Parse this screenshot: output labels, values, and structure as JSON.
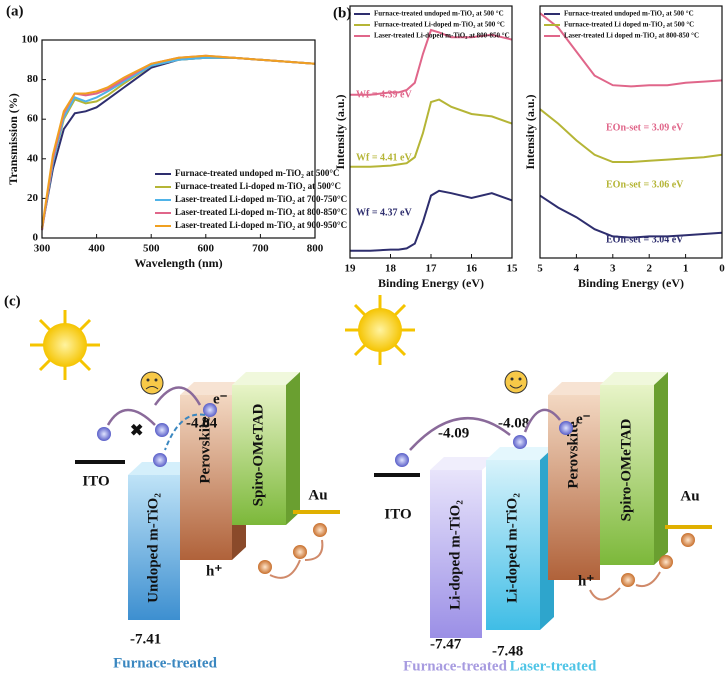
{
  "chart_data": [
    {
      "type": "line",
      "panel_label": "(a)",
      "x_label": "Wavelength (nm)",
      "y_label": "Transmission (%)",
      "x": [
        300,
        320,
        340,
        360,
        380,
        400,
        420,
        450,
        500,
        550,
        600,
        650,
        700,
        750,
        800
      ],
      "xlim": [
        300,
        800
      ],
      "xticks": [
        300,
        400,
        500,
        600,
        700,
        800
      ],
      "ylim": [
        0,
        100
      ],
      "yticks": [
        0,
        20,
        40,
        60,
        80,
        100
      ],
      "legend": "lower right",
      "series": [
        {
          "name": "Furnace-treated undoped m-TiO₂ at 500°C",
          "color": "#2e2e6e",
          "values": [
            5,
            35,
            55,
            63,
            64,
            66,
            70,
            76,
            86,
            90,
            91,
            91,
            90,
            89,
            88
          ]
        },
        {
          "name": "Furnace-treated Li-doped m-TiO₂ at 500°C",
          "color": "#b5b536",
          "values": [
            4,
            38,
            60,
            70,
            68,
            69,
            72,
            78,
            87,
            90,
            91,
            91,
            90,
            89,
            88
          ]
        },
        {
          "name": "Laser-treated Li-doped m-TiO₂ at 700-750°C",
          "color": "#4fb3e8",
          "values": [
            4,
            38,
            61,
            71,
            69,
            71,
            74,
            79,
            87,
            90,
            91,
            91,
            90,
            89,
            88
          ]
        },
        {
          "name": "Laser-treated Li-doped m-TiO₂ at 800-850°C",
          "color": "#e0668a",
          "values": [
            4,
            40,
            63,
            73,
            72,
            73,
            75,
            80,
            88,
            91,
            92,
            91,
            90,
            89,
            88
          ]
        },
        {
          "name": "Laser-treated Li-doped m-TiO₂ at 900-950°C",
          "color": "#f0a020",
          "values": [
            5,
            42,
            64,
            73,
            73,
            74,
            76,
            81,
            88,
            91,
            92,
            91,
            90,
            89,
            88
          ]
        }
      ]
    },
    {
      "type": "line",
      "panel_label": "(b)",
      "x_label": "Binding Energy (eV)",
      "y_label": "Intensity (a.u.)",
      "x": [
        19,
        18.5,
        18,
        17.8,
        17.6,
        17.4,
        17.2,
        17,
        16.8,
        16.5,
        16,
        15.5,
        15
      ],
      "xlim": [
        19,
        15
      ],
      "xticks": [
        19,
        18,
        17,
        16,
        15
      ],
      "ylim": [
        0,
        10.5
      ],
      "legend": "upper left",
      "series": [
        {
          "name": "Furnace-treated undoped m-TiO₂ at 500 °C",
          "color": "#2e2e6e",
          "values": [
            0.3,
            0.3,
            0.35,
            0.35,
            0.4,
            0.6,
            1.5,
            2.6,
            2.8,
            2.7,
            2.5,
            2.7,
            2.4
          ]
        },
        {
          "name": "Furnace-treated Li-doped m-TiO₂ at 500 °C",
          "color": "#b5b536",
          "values": [
            3.8,
            3.8,
            3.85,
            3.9,
            3.95,
            4.2,
            5.2,
            6.5,
            6.6,
            6.3,
            6.0,
            5.9,
            5.6
          ]
        },
        {
          "name": "Laser-treated Li-doped m-TiO₂ at 800-850 °C",
          "color": "#e0668a",
          "values": [
            6.8,
            6.8,
            6.9,
            6.9,
            7.0,
            7.3,
            8.5,
            9.5,
            9.4,
            9.2,
            9.2,
            9.3,
            9.1
          ]
        }
      ],
      "annotations": [
        "Wf = 4.37 eV",
        "Wf = 4.41 eV",
        "Wf = 4.39 eV"
      ]
    },
    {
      "type": "line",
      "x_label": "Binding Energy (eV)",
      "y_label": "Intensity (a.u.)",
      "x": [
        5,
        4.5,
        4,
        3.5,
        3,
        2.5,
        2,
        1.5,
        1,
        0.5,
        0
      ],
      "xlim": [
        5,
        0
      ],
      "xticks": [
        5,
        4,
        3,
        2,
        1,
        0
      ],
      "ylim": [
        0,
        10.5
      ],
      "legend": "upper left",
      "series": [
        {
          "name": "Furnace-treated undoped m-TiO₂ at 500 °C",
          "color": "#2e2e6e",
          "values": [
            2.6,
            2.1,
            1.7,
            1.2,
            0.9,
            0.85,
            0.9,
            0.9,
            0.95,
            1.0,
            1.05
          ]
        },
        {
          "name": "Furnace-treated Li doped m-TiO₂ at 500 °C",
          "color": "#b5b536",
          "values": [
            6.2,
            5.6,
            4.9,
            4.3,
            4.0,
            4.0,
            4.05,
            4.1,
            4.15,
            4.2,
            4.3
          ]
        },
        {
          "name": "Laser-treated Li doped m-TiO₂ at 800-850 °C",
          "color": "#e0668a",
          "values": [
            10.2,
            9.6,
            8.6,
            7.6,
            7.2,
            7.15,
            7.2,
            7.2,
            7.3,
            7.35,
            7.4
          ]
        }
      ],
      "annotations": [
        "EOn-set = 3.04 eV",
        "EOn-set = 3.06 eV",
        "EOn-set = 3.09 eV"
      ]
    }
  ],
  "diagram": {
    "panel_label": "(c)",
    "left": {
      "ito": "ITO",
      "tio2": "Undoped m-TiO₂",
      "perovskite": "Perovskite",
      "spiro": "Spiro-OMeTAD",
      "au": "Au",
      "lumo": "-4.04",
      "homo": "-7.41",
      "hole": "h⁺",
      "electron": "e⁻",
      "caption": "Furnace-treated"
    },
    "right": {
      "ito": "ITO",
      "tio2_furnace": "Li-doped m-TiO₂",
      "tio2_laser": "Li-doped m-TiO₂",
      "perovskite": "Perovskite",
      "spiro": "Spiro-OMeTAD",
      "au": "Au",
      "lumo_furnace": "-4.09",
      "lumo_laser": "-4.08",
      "homo_furnace": "-7.47",
      "homo_laser": "-7.48",
      "hole": "h⁺",
      "electron": "e⁻",
      "caption_furnace": "Furnace-treated",
      "caption_laser": "Laser-treated"
    }
  }
}
